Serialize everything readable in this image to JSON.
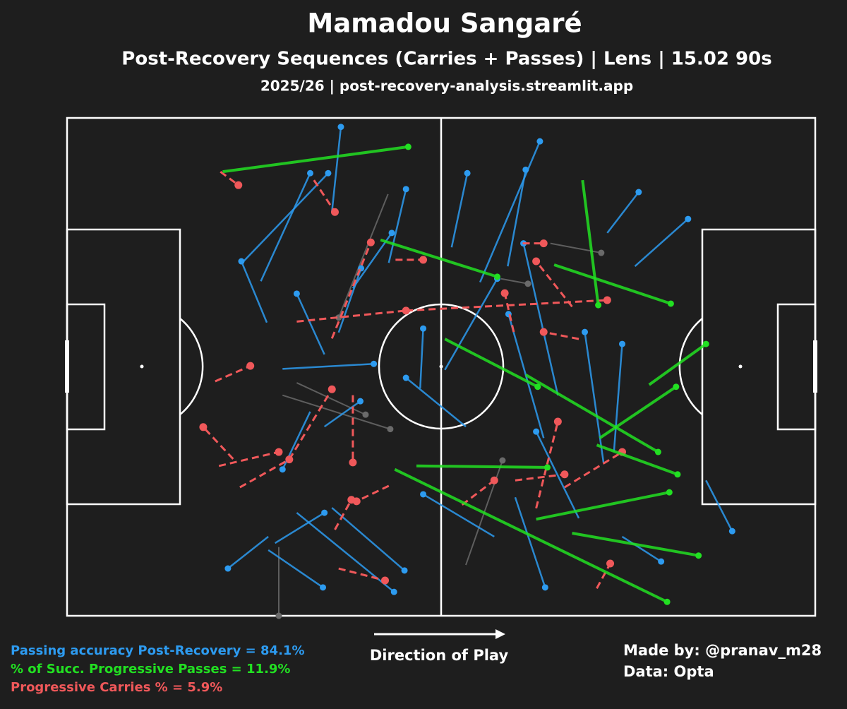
{
  "chart_data": {
    "type": "pitch",
    "title": "Mamadou Sangaré",
    "subtitle": "Post-Recovery Sequences (Carries + Passes) | Lens | 15.02 90s",
    "caption": "2025/26 | post-recovery-analysis.streamlit.app",
    "xlim": [
      0,
      100
    ],
    "ylim": [
      0,
      100
    ],
    "direction_label": "Direction of Play",
    "stats": [
      {
        "text": "Passing accuracy Post-Recovery = 84.1%",
        "color": "#2d9bf0"
      },
      {
        "text": "% of Succ. Progressive Passes = 11.9%",
        "color": "#22e022"
      },
      {
        "text": "Progressive Carries % = 5.9%",
        "color": "#f0585a"
      }
    ],
    "credits": [
      "Made by: @pranav_m28",
      "Data: Opta"
    ],
    "series": [
      {
        "color": "#6a6a6a",
        "style": "solid",
        "width": 2,
        "x": [
          30.7,
          42.9,
          28.8,
          28.3,
          53.3,
          64.6,
          58.0
        ],
        "y": [
          46.8,
          84.7,
          44.3,
          13.8,
          10.2,
          74.8,
          67.7
        ],
        "end_x": [
          39.9,
          36.3,
          43.2,
          28.3,
          58.2,
          71.4,
          61.6
        ],
        "end_y": [
          40.4,
          59.9,
          37.5,
          0,
          31.2,
          72.9,
          66.7
        ]
      },
      {
        "color": "#2d9bf0",
        "style": "solid",
        "width": 2.5,
        "x": [
          35.4,
          55.2,
          25.9,
          23.6,
          26.7,
          51.4,
          58.9,
          72.2,
          75.9,
          34.4,
          28.8,
          36.3,
          47.2,
          50.5,
          63.7,
          53.3,
          57.1,
          68.4,
          71.7,
          73.1,
          85.4,
          74.2,
          26.9,
          27.8,
          26.9,
          35.4,
          30.7,
          59.9,
          32.5,
          34.4,
          38.2,
          43.0,
          65.6
        ],
        "y": [
          81.1,
          67.0,
          67.2,
          71.2,
          58.9,
          74.0,
          70.2,
          76.9,
          70.2,
          52.5,
          49.6,
          56.9,
          45.7,
          49.4,
          35.7,
          38.0,
          15.9,
          19.6,
          30.8,
          33.0,
          27.2,
          15.9,
          15.9,
          14.6,
          13.2,
          21.7,
          20.7,
          23.8,
          41.0,
          38.0,
          65.8,
          70.9,
          44.3
        ],
        "end_x": [
          36.6,
          63.2,
          32.5,
          34.9,
          23.3,
          53.5,
          61.3,
          76.4,
          83.0,
          30.7,
          41.0,
          39.3,
          47.6,
          57.5,
          59.0,
          45.3,
          47.6,
          62.7,
          69.2,
          74.2,
          88.9,
          79.4,
          21.5,
          34.4,
          34.2,
          45.1,
          43.7,
          63.9,
          28.8,
          39.2,
          43.4,
          45.3,
          61.0
        ],
        "end_y": [
          98.2,
          95.3,
          88.9,
          88.9,
          71.2,
          88.9,
          89.6,
          85.1,
          79.7,
          64.7,
          50.6,
          69.8,
          57.7,
          67.7,
          60.6,
          47.8,
          24.4,
          37.0,
          57.0,
          54.6,
          17.0,
          10.9,
          9.5,
          20.7,
          5.7,
          9.1,
          4.8,
          5.7,
          29.4,
          43.1,
          76.9,
          85.7,
          74.8
        ]
      },
      {
        "color": "#f0585a",
        "style": "dashed",
        "width": 3,
        "x": [
          20.5,
          33.0,
          30.7,
          45.3,
          19.8,
          43.9,
          35.4,
          20.3,
          43.0,
          36.3,
          35.8,
          59.7,
          62.7,
          66.5,
          59.9,
          70.8,
          67.5,
          60.9,
          52.8,
          23.1,
          29.7,
          38.2,
          22.2,
          68.4
        ],
        "y": [
          89.2,
          87.5,
          59.1,
          61.3,
          47.1,
          71.5,
          55.7,
          30.1,
          26.1,
          9.5,
          17.3,
          57.0,
          21.6,
          25.8,
          27.2,
          5.5,
          62.1,
          74.8,
          22.3,
          25.8,
          31.4,
          44.3,
          31.5,
          55.6
        ],
        "end_x": [
          22.9,
          35.8,
          45.3,
          72.2,
          24.5,
          47.6,
          40.6,
          28.3,
          38.7,
          42.5,
          38.0,
          58.5,
          65.6,
          74.2,
          66.5,
          72.6,
          62.7,
          63.7,
          57.1,
          29.7,
          35.4,
          38.2,
          18.2,
          63.7
        ],
        "end_y": [
          86.5,
          81.1,
          61.3,
          63.4,
          50.2,
          71.5,
          75.0,
          32.9,
          23.0,
          7.1,
          23.3,
          64.8,
          39.0,
          32.9,
          28.4,
          10.5,
          71.2,
          74.8,
          27.2,
          31.4,
          45.5,
          30.8,
          37.9,
          57.0
        ]
      },
      {
        "color": "#22e022",
        "style": "solid",
        "width": 4,
        "x": [
          20.8,
          41.9,
          68.9,
          65.1,
          50.5,
          77.8,
          71.2,
          61.3,
          46.7,
          70.8,
          62.7,
          67.5,
          43.8
        ],
        "y": [
          89.2,
          75.5,
          87.5,
          70.5,
          55.6,
          46.4,
          35.7,
          48.4,
          30.1,
          34.3,
          19.4,
          16.6,
          29.4
        ],
        "end_x": [
          45.6,
          57.5,
          71.0,
          80.7,
          62.9,
          85.4,
          81.4,
          79.0,
          64.2,
          81.6,
          80.5,
          84.4,
          80.2
        ],
        "end_y": [
          94.2,
          68.1,
          62.4,
          62.7,
          46.0,
          54.6,
          46.0,
          32.9,
          29.8,
          28.4,
          24.8,
          12.1,
          2.8
        ]
      }
    ]
  }
}
